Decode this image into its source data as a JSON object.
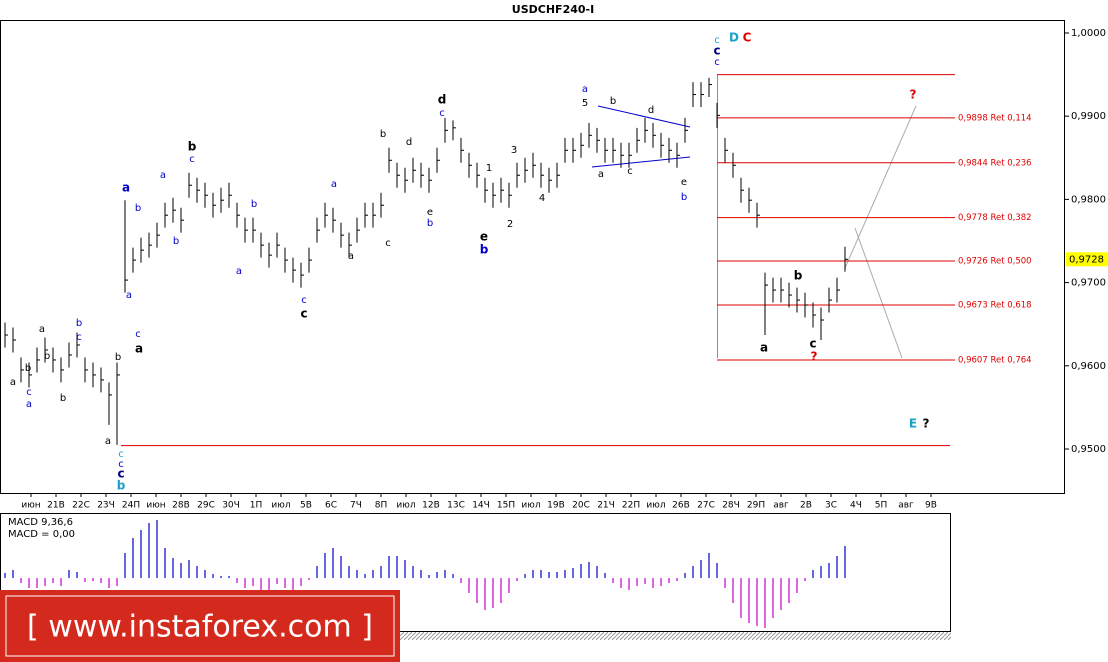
{
  "chart_data": [
    {
      "type": "ohlc",
      "title": "USDCHF240-I",
      "high": [
        0.9652,
        0.9646,
        0.961,
        0.9604,
        0.9622,
        0.9634,
        0.9622,
        0.961,
        0.9628,
        0.964,
        0.961,
        0.9604,
        0.9598,
        0.958,
        0.9604,
        0.9799,
        0.9742,
        0.9754,
        0.976,
        0.9772,
        0.9796,
        0.9802,
        0.979,
        0.9832,
        0.9826,
        0.982,
        0.9808,
        0.9814,
        0.982,
        0.9796,
        0.9778,
        0.9778,
        0.976,
        0.9748,
        0.976,
        0.9742,
        0.973,
        0.9724,
        0.9742,
        0.9778,
        0.9796,
        0.979,
        0.9772,
        0.976,
        0.9778,
        0.9796,
        0.9796,
        0.9808,
        0.9862,
        0.9844,
        0.9838,
        0.985,
        0.9844,
        0.9838,
        0.9862,
        0.9898,
        0.9895,
        0.9874,
        0.9856,
        0.9844,
        0.9826,
        0.982,
        0.9826,
        0.982,
        0.9844,
        0.985,
        0.9856,
        0.9844,
        0.9838,
        0.9844,
        0.9874,
        0.9874,
        0.988,
        0.9892,
        0.9886,
        0.9874,
        0.9874,
        0.9868,
        0.9868,
        0.9886,
        0.9898,
        0.9892,
        0.988,
        0.9874,
        0.9868,
        0.9898,
        0.9941,
        0.9941,
        0.9946,
        0.9916,
        0.9874,
        0.9856,
        0.9826,
        0.9814,
        0.9796,
        0.9712,
        0.9706,
        0.9706,
        0.97,
        0.9694,
        0.9688,
        0.9676,
        0.967,
        0.9694,
        0.9706,
        0.9743
      ],
      "low": [
        0.9622,
        0.9616,
        0.958,
        0.9574,
        0.9592,
        0.9604,
        0.9592,
        0.958,
        0.9598,
        0.961,
        0.958,
        0.9574,
        0.9568,
        0.9529,
        0.9505,
        0.9688,
        0.9712,
        0.9724,
        0.973,
        0.9742,
        0.9766,
        0.9772,
        0.976,
        0.9802,
        0.9796,
        0.979,
        0.9778,
        0.9784,
        0.979,
        0.9766,
        0.9748,
        0.9748,
        0.973,
        0.9718,
        0.973,
        0.9712,
        0.97,
        0.9694,
        0.9712,
        0.9748,
        0.9766,
        0.976,
        0.9742,
        0.973,
        0.9748,
        0.9766,
        0.9766,
        0.9778,
        0.9832,
        0.9814,
        0.9808,
        0.982,
        0.9814,
        0.9808,
        0.9832,
        0.9868,
        0.9871,
        0.9844,
        0.9826,
        0.9814,
        0.9796,
        0.979,
        0.9796,
        0.979,
        0.9814,
        0.982,
        0.9826,
        0.9814,
        0.9808,
        0.9814,
        0.9844,
        0.9844,
        0.985,
        0.9862,
        0.9856,
        0.9844,
        0.9844,
        0.9838,
        0.9838,
        0.9856,
        0.9868,
        0.9862,
        0.985,
        0.9844,
        0.9838,
        0.9868,
        0.9911,
        0.9911,
        0.9923,
        0.9886,
        0.9844,
        0.9826,
        0.9796,
        0.9784,
        0.9766,
        0.9637,
        0.9676,
        0.9676,
        0.967,
        0.9664,
        0.9658,
        0.9646,
        0.9631,
        0.9664,
        0.9676,
        0.9713
      ],
      "close": [
        0.9637,
        0.9631,
        0.9595,
        0.9589,
        0.9607,
        0.9619,
        0.9607,
        0.9595,
        0.9613,
        0.9625,
        0.9595,
        0.9589,
        0.9583,
        0.9565,
        0.9589,
        0.9703,
        0.9727,
        0.9739,
        0.9745,
        0.9757,
        0.9781,
        0.9787,
        0.9775,
        0.9817,
        0.9811,
        0.9805,
        0.9793,
        0.9799,
        0.9805,
        0.9781,
        0.9763,
        0.9763,
        0.9745,
        0.9733,
        0.9745,
        0.9727,
        0.9715,
        0.9709,
        0.9727,
        0.9763,
        0.9781,
        0.9775,
        0.9757,
        0.9745,
        0.9763,
        0.9781,
        0.9781,
        0.9793,
        0.9847,
        0.9829,
        0.9823,
        0.9835,
        0.9829,
        0.9823,
        0.9847,
        0.9883,
        0.9886,
        0.9859,
        0.9841,
        0.9829,
        0.9811,
        0.9805,
        0.9811,
        0.9805,
        0.9829,
        0.9835,
        0.9841,
        0.9829,
        0.9823,
        0.9829,
        0.9859,
        0.9859,
        0.9865,
        0.9877,
        0.9871,
        0.9859,
        0.9859,
        0.9853,
        0.9853,
        0.9871,
        0.9883,
        0.9877,
        0.9865,
        0.9859,
        0.9853,
        0.9883,
        0.9926,
        0.9926,
        0.9938,
        0.9901,
        0.9859,
        0.9841,
        0.9811,
        0.9799,
        0.9781,
        0.9697,
        0.9691,
        0.9691,
        0.9685,
        0.9679,
        0.9673,
        0.9661,
        0.9655,
        0.9679,
        0.9691,
        0.9728
      ],
      "color": "#000000",
      "ylim": [
        0.94471,
        1.00156
      ],
      "yticks": [
        {
          "value": 0.95,
          "label": "0,9500"
        },
        {
          "value": 0.96,
          "label": "0,9600"
        },
        {
          "value": 0.97,
          "label": "0,9700"
        },
        {
          "value": 0.98,
          "label": "0,9800"
        },
        {
          "value": 0.99,
          "label": "0,9900"
        },
        {
          "value": 1.0,
          "label": "1,0000"
        }
      ],
      "last_price": {
        "value": 0.9728,
        "label": "0,9728"
      },
      "categories": [
        "июн",
        "21В",
        "22С",
        "23Ч",
        "24П",
        "июн",
        "28В",
        "29С",
        "30Ч",
        "1П",
        "июл",
        "5В",
        "6С",
        "7Ч",
        "8П",
        "июл",
        "12В",
        "13С",
        "14Ч",
        "15П",
        "июл",
        "19В",
        "20С",
        "21Ч",
        "22П",
        "июл",
        "26В",
        "27С",
        "28Ч",
        "29П",
        "авг",
        "2В",
        "3С",
        "4Ч",
        "5П",
        "авг",
        "9В"
      ],
      "levels": [
        {
          "value": 0.9898,
          "label": "0,9898 Ret 0,114"
        },
        {
          "value": 0.9844,
          "label": "0,9844 Ret 0,236"
        },
        {
          "value": 0.9778,
          "label": "0,9778 Ret 0,382"
        },
        {
          "value": 0.9726,
          "label": "0,9726 Ret 0,500"
        },
        {
          "value": 0.9673,
          "label": "0,9673 Ret 0,618"
        },
        {
          "value": 0.9607,
          "label": "0,9607 Ret 0,764"
        }
      ],
      "level_color": "#e00000",
      "hlines": [
        0.995,
        0.9504
      ],
      "annotations": [
        {
          "text": "b",
          "color": "#000000"
        },
        {
          "text": "a",
          "color": "#000000"
        },
        {
          "text": "d",
          "color": "#000000"
        },
        {
          "text": "e",
          "color": "#000000"
        },
        {
          "text": "b",
          "color": "#0000cc"
        },
        {
          "text": "c",
          "color": "#000000"
        },
        {
          "text": "a",
          "color": "#000000"
        },
        {
          "text": "b",
          "color": "#000000"
        },
        {
          "text": "c",
          "color": "#000000"
        },
        {
          "text": "?",
          "color": "#e00000"
        },
        {
          "text": "?",
          "color": "#e00000"
        },
        {
          "text": "D",
          "color": "#1ca0c8"
        },
        {
          "text": "C",
          "color": "#e00000"
        },
        {
          "text": "E",
          "color": "#1ca0c8"
        },
        {
          "text": "?",
          "color": "#000000"
        },
        {
          "text": "c",
          "color": "#1ca0c8"
        },
        {
          "text": "c",
          "color": "#000080"
        },
        {
          "text": "c",
          "color": "#0000cc"
        },
        {
          "text": "a",
          "color": "#0000cc"
        },
        {
          "text": "b",
          "color": "#1ca0c8"
        },
        {
          "text": "c",
          "color": "#1ca0c8"
        },
        {
          "text": "c",
          "color": "#0000cc"
        },
        {
          "text": "c",
          "color": "#000080"
        },
        {
          "text": "a",
          "color": "#000000"
        },
        {
          "text": "b",
          "color": "#000000"
        },
        {
          "text": "c",
          "color": "#0000cc"
        },
        {
          "text": "a",
          "color": "#0000cc"
        },
        {
          "text": "a",
          "color": "#000000"
        },
        {
          "text": "b",
          "color": "#000000"
        },
        {
          "text": "b",
          "color": "#000000"
        },
        {
          "text": "b",
          "color": "#0000cc"
        },
        {
          "text": "c",
          "color": "#0000cc"
        },
        {
          "text": "a",
          "color": "#000000"
        },
        {
          "text": "b",
          "color": "#000000"
        },
        {
          "text": "b",
          "color": "#0000cc"
        },
        {
          "text": "c",
          "color": "#0000cc"
        },
        {
          "text": "a",
          "color": "#0000cc"
        },
        {
          "text": "a",
          "color": "#0000cc"
        },
        {
          "text": "b",
          "color": "#0000cc"
        },
        {
          "text": "c",
          "color": "#0000cc"
        },
        {
          "text": "a",
          "color": "#0000cc"
        },
        {
          "text": "b",
          "color": "#0000cc"
        },
        {
          "text": "c",
          "color": "#0000cc"
        },
        {
          "text": "a",
          "color": "#0000cc"
        },
        {
          "text": "a",
          "color": "#000000"
        },
        {
          "text": "b",
          "color": "#000000"
        },
        {
          "text": "c",
          "color": "#000000"
        },
        {
          "text": "d",
          "color": "#000000"
        },
        {
          "text": "e",
          "color": "#000000"
        },
        {
          "text": "b",
          "color": "#0000cc"
        },
        {
          "text": "c",
          "color": "#0000cc"
        },
        {
          "text": "1",
          "color": "#000000"
        },
        {
          "text": "2",
          "color": "#000000"
        },
        {
          "text": "3",
          "color": "#000000"
        },
        {
          "text": "4",
          "color": "#000000"
        },
        {
          "text": "a",
          "color": "#0000cc"
        },
        {
          "text": "5",
          "color": "#000000"
        },
        {
          "text": "b",
          "color": "#000000"
        },
        {
          "text": "d",
          "color": "#000000"
        },
        {
          "text": "a",
          "color": "#000000"
        },
        {
          "text": "c",
          "color": "#000000"
        },
        {
          "text": "e",
          "color": "#000000"
        },
        {
          "text": "b",
          "color": "#0000cc"
        }
      ],
      "logo": "[ www.instaforex.com ]"
    },
    {
      "type": "bar",
      "title": "MACD 9,36,6",
      "subtitle": "MACD = 0,00",
      "values": [
        0.0005,
        0.0008,
        -0.0005,
        -0.001,
        -0.001,
        -0.0008,
        -0.0005,
        -0.0008,
        0.0008,
        0.0006,
        -0.0004,
        -0.0003,
        -0.0005,
        -0.001,
        -0.0008,
        0.0025,
        0.004,
        0.0048,
        0.0055,
        0.0058,
        0.003,
        0.002,
        0.0015,
        0.0018,
        0.0012,
        0.0008,
        0.0004,
        0.0002,
        0.0002,
        -0.0005,
        -0.001,
        -0.0008,
        -0.0012,
        -0.0012,
        -0.0006,
        -0.001,
        -0.0012,
        -0.0008,
        -0.0002,
        0.0012,
        0.0025,
        0.003,
        0.0022,
        0.0012,
        0.0008,
        0.0004,
        0.0008,
        0.0012,
        0.0022,
        0.0022,
        0.0018,
        0.0012,
        0.0008,
        0.0003,
        0.0006,
        0.0008,
        0.0004,
        -0.0005,
        -0.0015,
        -0.0025,
        -0.0032,
        -0.003,
        -0.0025,
        -0.0015,
        -0.0003,
        0.0004,
        0.0008,
        0.0008,
        0.0006,
        0.0006,
        0.0008,
        0.001,
        0.0014,
        0.0016,
        0.0012,
        0.0005,
        -0.0005,
        -0.001,
        -0.0012,
        -0.0008,
        -0.0006,
        -0.001,
        -0.0008,
        -0.0005,
        -0.0003,
        0.0005,
        0.0012,
        0.0018,
        0.0025,
        0.0015,
        -0.001,
        -0.0025,
        -0.004,
        -0.0045,
        -0.0048,
        -0.005,
        -0.004,
        -0.0032,
        -0.0025,
        -0.0015,
        -0.0003,
        0.0008,
        0.0012,
        0.0015,
        0.0022,
        0.0032
      ],
      "ylim": [
        -0.0052,
        0.0063
      ],
      "color_up": "#0000cc",
      "color_down": "#cc00cc"
    }
  ]
}
